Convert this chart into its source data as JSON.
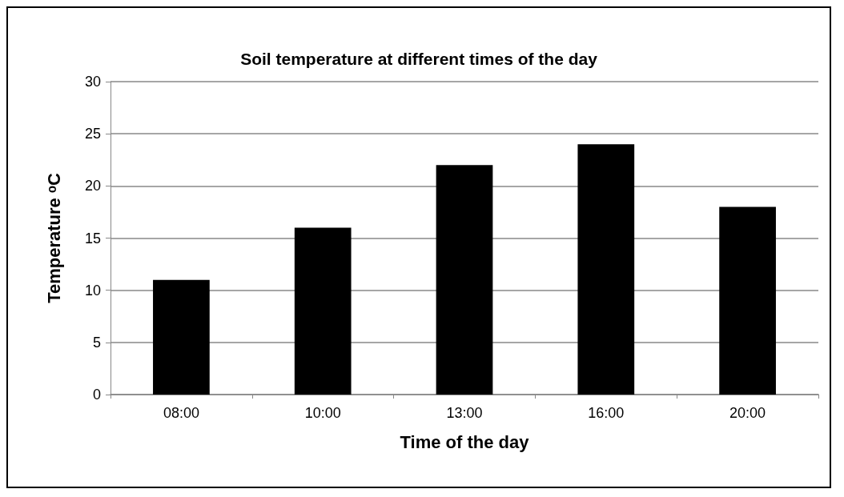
{
  "chart_data": {
    "type": "bar",
    "title": "Soil temperature at different times of the day",
    "xlabel": "Time of the day",
    "ylabel": "Temperature ᵒC",
    "categories": [
      "08:00",
      "10:00",
      "13:00",
      "16:00",
      "20:00"
    ],
    "values": [
      11,
      16,
      22,
      24,
      18
    ],
    "color": "#000000",
    "ylim": [
      0,
      30
    ],
    "yticks": [
      0,
      5,
      10,
      15,
      20,
      25,
      30
    ],
    "grid": "y"
  }
}
